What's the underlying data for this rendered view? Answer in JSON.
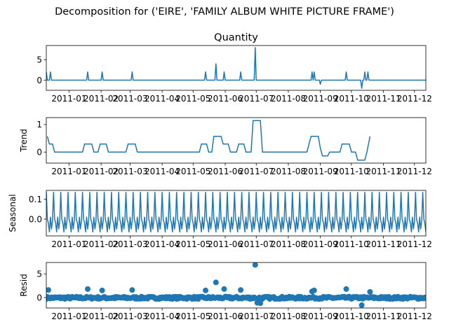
{
  "figure": {
    "suptitle": "Decomposition for ('EIRE', 'FAMILY ALBUM WHITE PICTURE FRAME')",
    "accent_color": "#1f77b4"
  },
  "chart_data": [
    {
      "type": "line",
      "panel": "observed",
      "title": "Quantity",
      "ylabel": "",
      "ylim": [
        -2.5,
        8.5
      ],
      "yticks": [
        0,
        5
      ],
      "xlim": [
        "2010-12-10",
        "2011-12-12"
      ],
      "xtick_labels": [
        "2011-01",
        "2011-02",
        "2011-03",
        "2011-04",
        "2011-05",
        "2011-06",
        "2011-07",
        "2011-08",
        "2011-09",
        "2011-10",
        "2011-11",
        "2011-12"
      ],
      "baseline": 0,
      "spikes": [
        {
          "x": "2010-12-10",
          "y": 2
        },
        {
          "x": "2010-12-14",
          "y": 2
        },
        {
          "x": "2011-01-19",
          "y": 2
        },
        {
          "x": "2011-02-02",
          "y": 2
        },
        {
          "x": "2011-03-03",
          "y": 2
        },
        {
          "x": "2011-05-13",
          "y": 2
        },
        {
          "x": "2011-05-23",
          "y": 4
        },
        {
          "x": "2011-05-31",
          "y": 2
        },
        {
          "x": "2011-06-16",
          "y": 2
        },
        {
          "x": "2011-06-30",
          "y": 8
        },
        {
          "x": "2011-08-24",
          "y": 2
        },
        {
          "x": "2011-08-26",
          "y": 2
        },
        {
          "x": "2011-09-01",
          "y": -1
        },
        {
          "x": "2011-09-26",
          "y": 2
        },
        {
          "x": "2011-10-11",
          "y": -2
        },
        {
          "x": "2011-10-14",
          "y": 2
        },
        {
          "x": "2011-10-17",
          "y": 2
        }
      ]
    },
    {
      "type": "line",
      "panel": "trend",
      "title": "",
      "ylabel": "Trend",
      "ylim": [
        -0.4,
        1.25
      ],
      "yticks": [
        0,
        1
      ],
      "xlim": [
        "2010-12-10",
        "2011-12-12"
      ],
      "xtick_labels": [
        "2011-01",
        "2011-02",
        "2011-03",
        "2011-04",
        "2011-05",
        "2011-06",
        "2011-07",
        "2011-08",
        "2011-09",
        "2011-10",
        "2011-11",
        "2011-12"
      ],
      "points": [
        [
          "2010-12-11",
          0.57
        ],
        [
          "2010-12-13",
          0.29
        ],
        [
          "2010-12-16",
          0.29
        ],
        [
          "2010-12-18",
          0
        ],
        [
          "2011-01-14",
          0
        ],
        [
          "2011-01-16",
          0.29
        ],
        [
          "2011-01-23",
          0.29
        ],
        [
          "2011-01-25",
          0
        ],
        [
          "2011-01-29",
          0
        ],
        [
          "2011-01-31",
          0.29
        ],
        [
          "2011-02-06",
          0.29
        ],
        [
          "2011-02-08",
          0
        ],
        [
          "2011-02-25",
          0
        ],
        [
          "2011-02-27",
          0.29
        ],
        [
          "2011-03-06",
          0.29
        ],
        [
          "2011-03-08",
          0
        ],
        [
          "2011-05-07",
          0
        ],
        [
          "2011-05-09",
          0.29
        ],
        [
          "2011-05-14",
          0.29
        ],
        [
          "2011-05-16",
          0
        ],
        [
          "2011-05-19",
          0
        ],
        [
          "2011-05-21",
          0.57
        ],
        [
          "2011-05-28",
          0.57
        ],
        [
          "2011-05-30",
          0.29
        ],
        [
          "2011-06-04",
          0.29
        ],
        [
          "2011-06-06",
          0
        ],
        [
          "2011-06-12",
          0
        ],
        [
          "2011-06-14",
          0.29
        ],
        [
          "2011-06-19",
          0.29
        ],
        [
          "2011-06-21",
          0
        ],
        [
          "2011-06-26",
          0
        ],
        [
          "2011-06-28",
          1.14
        ],
        [
          "2011-07-05",
          1.14
        ],
        [
          "2011-07-07",
          0
        ],
        [
          "2011-08-19",
          0
        ],
        [
          "2011-08-21",
          0.29
        ],
        [
          "2011-08-23",
          0.57
        ],
        [
          "2011-08-30",
          0.57
        ],
        [
          "2011-09-01",
          0.14
        ],
        [
          "2011-09-03",
          -0.14
        ],
        [
          "2011-09-08",
          -0.14
        ],
        [
          "2011-09-10",
          0
        ],
        [
          "2011-09-20",
          0
        ],
        [
          "2011-09-22",
          0.29
        ],
        [
          "2011-09-29",
          0.29
        ],
        [
          "2011-10-01",
          0
        ],
        [
          "2011-10-05",
          0
        ],
        [
          "2011-10-07",
          -0.29
        ],
        [
          "2011-10-14",
          -0.29
        ],
        [
          "2011-10-16",
          0
        ],
        [
          "2011-10-19",
          0.57
        ]
      ]
    },
    {
      "type": "line",
      "panel": "seasonal",
      "title": "",
      "ylabel": "Seasonal",
      "ylim": [
        -0.085,
        0.145
      ],
      "yticks": [
        0.1,
        0.0
      ],
      "ytick_labels": [
        "0.1",
        "0.0"
      ],
      "xlim": [
        "2010-12-10",
        "2011-12-12"
      ],
      "xtick_labels": [
        "2011-01",
        "2011-02",
        "2011-03",
        "2011-04",
        "2011-05",
        "2011-06",
        "2011-07",
        "2011-08",
        "2011-09",
        "2011-10",
        "2011-11",
        "2011-12"
      ],
      "period_days": 7,
      "weekly_pattern": [
        0.135,
        0.0,
        -0.02,
        -0.065,
        0.01,
        -0.05,
        -0.01
      ]
    },
    {
      "type": "scatter",
      "panel": "resid",
      "title": "",
      "ylabel": "Resid",
      "ylim": [
        -2.2,
        7.4
      ],
      "yticks": [
        0,
        5
      ],
      "xlim": [
        "2010-12-10",
        "2011-12-12"
      ],
      "xtick_labels": [
        "2011-01",
        "2011-02",
        "2011-03",
        "2011-04",
        "2011-05",
        "2011-06",
        "2011-07",
        "2011-08",
        "2011-09",
        "2011-10",
        "2011-11",
        "2011-12"
      ],
      "highlights": [
        [
          "2010-12-12",
          1.6
        ],
        [
          "2011-01-19",
          1.8
        ],
        [
          "2011-02-02",
          1.5
        ],
        [
          "2011-03-03",
          1.6
        ],
        [
          "2011-05-13",
          1.5
        ],
        [
          "2011-05-23",
          3.2
        ],
        [
          "2011-05-31",
          1.8
        ],
        [
          "2011-06-16",
          1.6
        ],
        [
          "2011-06-30",
          6.9
        ],
        [
          "2011-07-02",
          -1.1
        ],
        [
          "2011-07-05",
          -1.2
        ],
        [
          "2011-08-24",
          1.3
        ],
        [
          "2011-08-26",
          1.5
        ],
        [
          "2011-09-26",
          1.8
        ],
        [
          "2011-10-11",
          -1.6
        ],
        [
          "2011-10-19",
          1.2
        ]
      ],
      "background_amplitude": 0.25
    }
  ]
}
